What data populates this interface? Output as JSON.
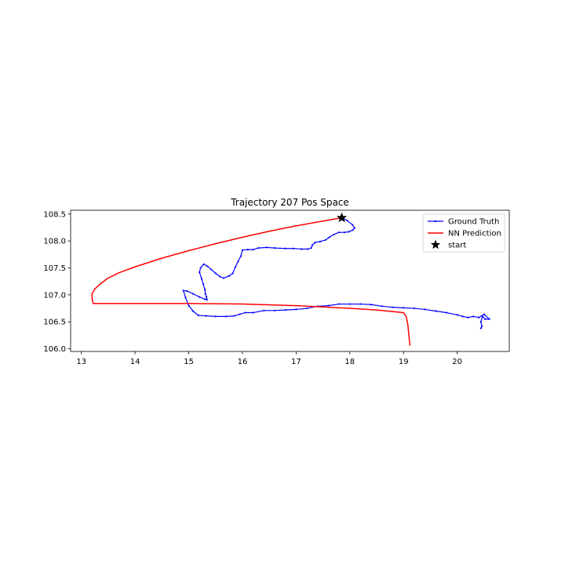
{
  "chart_data": {
    "type": "line",
    "title": "Trajectory 207 Pos Space",
    "xlabel": "",
    "ylabel": "",
    "xlim": [
      12.8,
      20.97
    ],
    "ylim": [
      105.95,
      108.57
    ],
    "xticks": [
      13,
      14,
      15,
      16,
      17,
      18,
      19,
      20
    ],
    "yticks": [
      106.0,
      106.5,
      107.0,
      107.5,
      108.0,
      108.5
    ],
    "xtick_labels": [
      "13",
      "14",
      "15",
      "16",
      "17",
      "18",
      "19",
      "20"
    ],
    "ytick_labels": [
      "106.0",
      "106.5",
      "107.0",
      "107.5",
      "108.0",
      "108.5"
    ],
    "grid": false,
    "legend_position": "upper right",
    "legend": [
      {
        "label": "Ground Truth",
        "color": "#0000ff",
        "style": "line-marker"
      },
      {
        "label": "NN Prediction",
        "color": "#ff0000",
        "style": "line"
      },
      {
        "label": "start",
        "color": "#000000",
        "style": "star"
      }
    ],
    "series": [
      {
        "name": "Ground Truth",
        "color": "#0000ff",
        "marker": "dot",
        "x": [
          17.85,
          17.95,
          18.05,
          18.09,
          18.05,
          17.98,
          17.9,
          17.8,
          17.7,
          17.62,
          17.55,
          17.45,
          17.35,
          17.3,
          17.28,
          17.22,
          17.1,
          16.95,
          16.8,
          16.6,
          16.45,
          16.3,
          16.2,
          16.1,
          16.0,
          15.97,
          15.92,
          15.87,
          15.82,
          15.75,
          15.65,
          15.58,
          15.5,
          15.42,
          15.35,
          15.28,
          15.22,
          15.2,
          15.24,
          15.27,
          15.3,
          15.31,
          15.33,
          15.34,
          15.3,
          15.2,
          15.08,
          14.97,
          14.9,
          14.94,
          15.0,
          15.08,
          15.18,
          15.32,
          15.5,
          15.7,
          15.85,
          15.95,
          16.05,
          16.2,
          16.4,
          16.6,
          16.8,
          17.0,
          17.2,
          17.4,
          17.6,
          17.8,
          18.0,
          18.2,
          18.4,
          18.6,
          18.8,
          19.0,
          19.2,
          19.4,
          19.6,
          19.8,
          20.0,
          20.1,
          20.2,
          20.3,
          20.4,
          20.5,
          20.6,
          20.52,
          20.47,
          20.44,
          20.46,
          20.44
        ],
        "y": [
          108.43,
          108.38,
          108.3,
          108.24,
          108.2,
          108.17,
          108.16,
          108.16,
          108.12,
          108.07,
          108.02,
          107.99,
          107.97,
          107.92,
          107.87,
          107.85,
          107.85,
          107.86,
          107.86,
          107.87,
          107.88,
          107.87,
          107.84,
          107.84,
          107.83,
          107.72,
          107.62,
          107.52,
          107.4,
          107.35,
          107.31,
          107.34,
          107.4,
          107.47,
          107.53,
          107.57,
          107.5,
          107.42,
          107.3,
          107.2,
          107.1,
          107.02,
          106.96,
          106.91,
          106.92,
          106.96,
          107.02,
          107.07,
          107.08,
          106.95,
          106.8,
          106.7,
          106.62,
          106.61,
          106.6,
          106.6,
          106.61,
          106.64,
          106.67,
          106.67,
          106.71,
          106.71,
          106.72,
          106.73,
          106.75,
          106.79,
          106.8,
          106.83,
          106.83,
          106.83,
          106.82,
          106.79,
          106.77,
          106.76,
          106.75,
          106.73,
          106.7,
          106.67,
          106.63,
          106.6,
          106.58,
          106.6,
          106.58,
          106.64,
          106.55,
          106.55,
          106.6,
          106.5,
          106.42,
          106.38
        ]
      },
      {
        "name": "NN Prediction",
        "color": "#ff0000",
        "marker": "none",
        "x": [
          17.85,
          17.5,
          17.0,
          16.5,
          16.0,
          15.5,
          15.0,
          14.5,
          14.0,
          13.7,
          13.48,
          13.35,
          13.25,
          13.2,
          13.2,
          13.22,
          13.5,
          14.0,
          15.0,
          16.0,
          17.0,
          18.0,
          18.5,
          19.0,
          19.05,
          19.08,
          19.1,
          19.12
        ],
        "y": [
          108.43,
          108.37,
          108.28,
          108.18,
          108.07,
          107.95,
          107.82,
          107.68,
          107.52,
          107.41,
          107.3,
          107.2,
          107.11,
          107.02,
          106.93,
          106.84,
          106.84,
          106.84,
          106.84,
          106.83,
          106.8,
          106.75,
          106.72,
          106.67,
          106.6,
          106.45,
          106.25,
          106.06
        ]
      }
    ],
    "start_point": {
      "name": "start",
      "x": 17.85,
      "y": 108.43,
      "marker": "star",
      "color": "#000000"
    }
  }
}
